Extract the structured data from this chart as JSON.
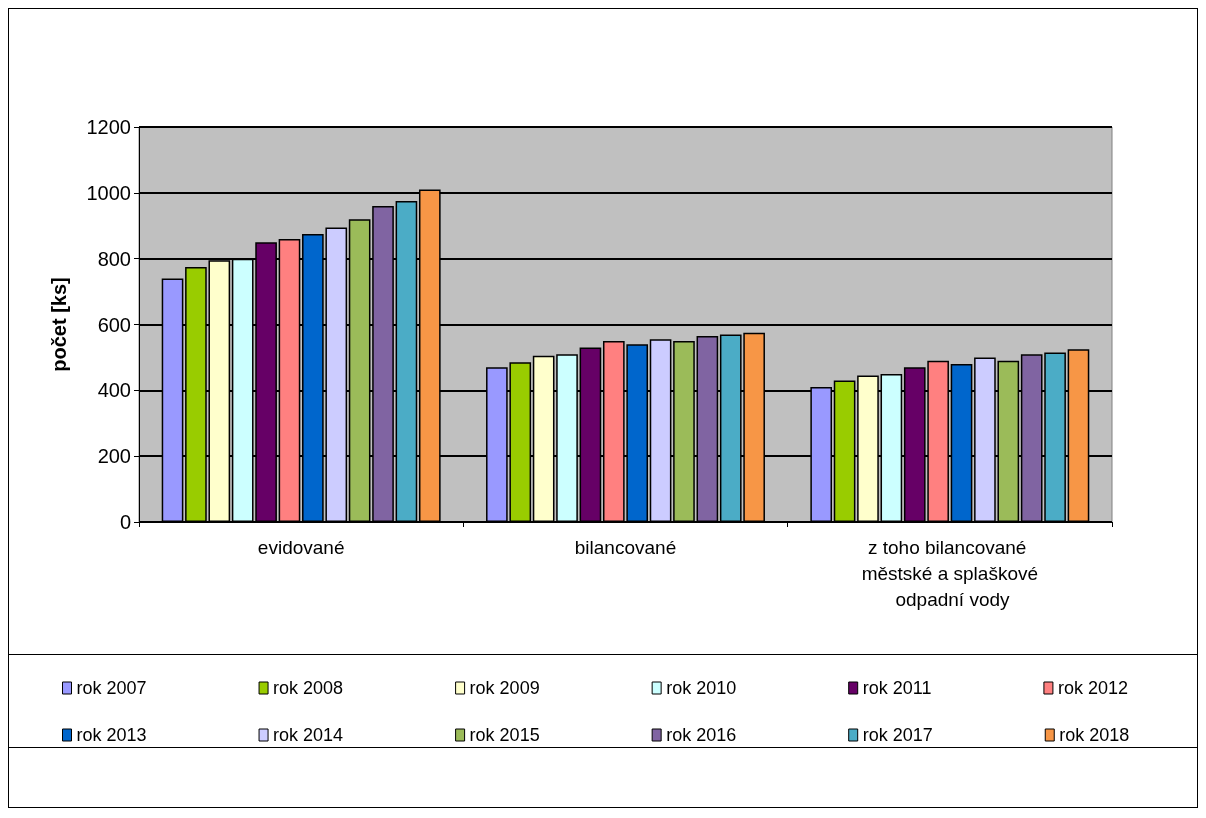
{
  "chart_data": {
    "type": "bar",
    "ylabel": "počet [ks]",
    "categories": [
      "evidované",
      "bilancované",
      "z toho bilancované městské a splaškové odpadní vody"
    ],
    "ylim": [
      0,
      1200
    ],
    "yticks": [
      0,
      200,
      400,
      600,
      800,
      1000,
      1200
    ],
    "grid": "y",
    "legend": "bottom",
    "series": [
      {
        "name": "rok 2007",
        "color": "#9999ff",
        "values": [
          740,
          470,
          410
        ]
      },
      {
        "name": "rok 2008",
        "color": "#99cc00",
        "values": [
          775,
          485,
          430
        ]
      },
      {
        "name": "rok 2009",
        "color": "#ffffcc",
        "values": [
          795,
          505,
          445
        ]
      },
      {
        "name": "rok 2010",
        "color": "#ccffff",
        "values": [
          800,
          510,
          450
        ]
      },
      {
        "name": "rok 2011",
        "color": "#660066",
        "values": [
          850,
          530,
          470
        ]
      },
      {
        "name": "rok 2012",
        "color": "#ff8080",
        "values": [
          860,
          550,
          490
        ]
      },
      {
        "name": "rok 2013",
        "color": "#0066cc",
        "values": [
          875,
          540,
          480
        ]
      },
      {
        "name": "rok 2014",
        "color": "#ccccff",
        "values": [
          895,
          555,
          500
        ]
      },
      {
        "name": "rok 2015",
        "color": "#9bbb59",
        "values": [
          920,
          550,
          490
        ]
      },
      {
        "name": "rok 2016",
        "color": "#8064a2",
        "values": [
          960,
          565,
          510
        ]
      },
      {
        "name": "rok 2017",
        "color": "#4bacc6",
        "values": [
          975,
          570,
          515
        ]
      },
      {
        "name": "rok 2018",
        "color": "#f79646",
        "values": [
          1010,
          575,
          525
        ]
      }
    ]
  }
}
